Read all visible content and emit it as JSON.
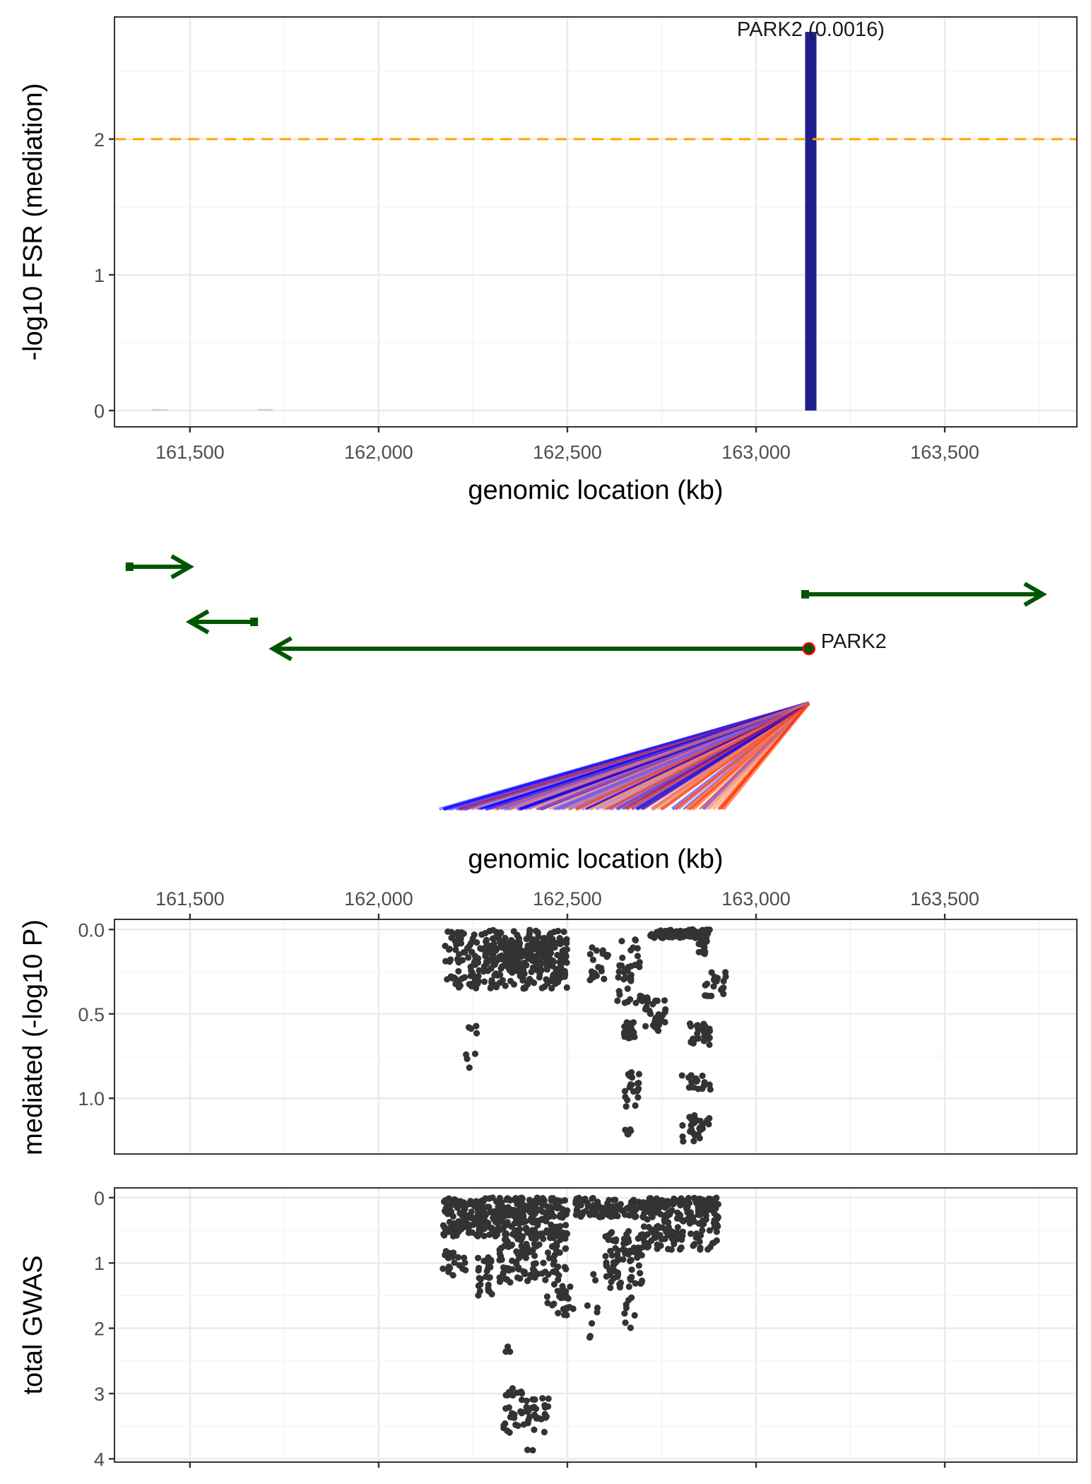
{
  "chart_data": [
    {
      "type": "bar",
      "xlabel": "genomic location (kb)",
      "ylabel": "-log10 FSR (mediation)",
      "x_ticks": [
        "161,500",
        "162,000",
        "162,500",
        "163,000",
        "163,500"
      ],
      "x_tick_values": [
        161500,
        162000,
        162500,
        163000,
        163500
      ],
      "y_ticks": [
        "0",
        "1",
        "2"
      ],
      "y_tick_values": [
        0,
        1,
        2
      ],
      "xlim": [
        161300,
        163850
      ],
      "ylim": [
        -0.12,
        2.9
      ],
      "grid": true,
      "threshold": {
        "y": 2,
        "color": "#FFA500",
        "style": "dashed"
      },
      "bars": [
        {
          "gene": "PARK2",
          "start": 163130,
          "end": 163160,
          "value": 2.79,
          "color": "#1F1F8C"
        },
        {
          "start": 161400,
          "end": 161440,
          "value": 0.005,
          "color": "#cccccc"
        },
        {
          "start": 161680,
          "end": 161720,
          "value": 0.005,
          "color": "#cccccc"
        }
      ],
      "label": "PARK2 (0.0016)"
    },
    {
      "type": "diagram",
      "genes": [
        {
          "start": 161340,
          "end": 161500,
          "direction": "forward",
          "row": 0
        },
        {
          "start": 161500,
          "end": 161670,
          "direction": "reverse",
          "row": 2
        },
        {
          "start": 161720,
          "end": 163140,
          "direction": "reverse",
          "row": 3,
          "label": "PARK2"
        },
        {
          "start": 163130,
          "end": 163760,
          "direction": "forward",
          "row": 1
        }
      ],
      "gene_color": "#005500",
      "hub": {
        "x": 163140,
        "label": "PARK2",
        "color": "#FF0000"
      },
      "link_colors": [
        "#0000FF",
        "#FF3300"
      ]
    },
    {
      "type": "scatter",
      "xlabel": "genomic location (kb)",
      "ylabel": "mediated (-log10 P)",
      "x_ticks": [
        "161,500",
        "162,000",
        "162,500",
        "163,000",
        "163,500"
      ],
      "x_tick_values": [
        161500,
        162000,
        162500,
        163000,
        163500
      ],
      "y_ticks": [
        "0.0",
        "0.5",
        "1.0"
      ],
      "y_tick_values": [
        0,
        0.5,
        1.0
      ],
      "xlim": [
        161300,
        163850
      ],
      "ylim": [
        -0.06,
        1.33
      ],
      "y_reversed": true,
      "grid": true,
      "color": "#333333"
    },
    {
      "type": "scatter",
      "ylabel": "total GWAS",
      "y_ticks": [
        "0",
        "1",
        "2",
        "3",
        "4"
      ],
      "y_tick_values": [
        0,
        1,
        2,
        3,
        4
      ],
      "xlim": [
        161300,
        163850
      ],
      "ylim": [
        -0.15,
        4.05
      ],
      "y_reversed": true,
      "grid": true,
      "color": "#333333"
    }
  ]
}
